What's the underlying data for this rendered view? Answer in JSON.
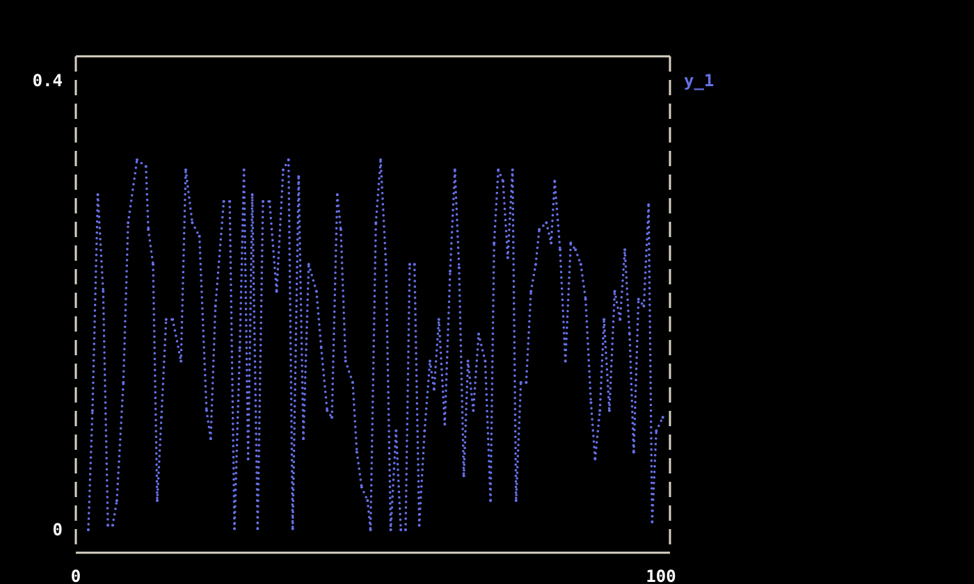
{
  "chart_data": {
    "type": "line",
    "title": "",
    "xlabel": "",
    "ylabel": "",
    "xlim": [
      0,
      100
    ],
    "ylim": [
      0,
      0.4
    ],
    "x_ticks": [
      "0",
      "100"
    ],
    "y_ticks": [
      "0",
      "0.4"
    ],
    "grid": false,
    "legend_placement": "top-right",
    "colors": {
      "series": "#6670e8",
      "frame": "#d9d2c3",
      "background": "#000000",
      "text": "#ffffff"
    },
    "series": [
      {
        "name": "y_1",
        "x": [
          2.1,
          2.8,
          3.7,
          4.6,
          5.4,
          6.2,
          6.9,
          8.0,
          8.8,
          10.3,
          11.8,
          12.2,
          13.0,
          13.7,
          14.4,
          15.2,
          16.3,
          17.7,
          18.5,
          19.6,
          20.8,
          22.0,
          22.7,
          23.5,
          24.9,
          25.9,
          26.7,
          27.6,
          28.3,
          29.0,
          29.7,
          30.6,
          31.5,
          32.6,
          33.8,
          34.9,
          35.8,
          36.5,
          37.5,
          38.3,
          39.2,
          40.5,
          41.3,
          42.3,
          43.1,
          44.0,
          44.6,
          45.4,
          46.6,
          47.3,
          48.1,
          49.1,
          49.6,
          50.5,
          51.3,
          52.2,
          53.0,
          53.9,
          54.7,
          55.5,
          56.2,
          57.0,
          57.8,
          58.7,
          59.6,
          60.3,
          61.1,
          62.1,
          63.0,
          63.8,
          64.5,
          65.3,
          66.0,
          66.9,
          67.8,
          68.9,
          69.8,
          70.4,
          71.1,
          71.9,
          72.7,
          73.5,
          74.1,
          74.9,
          75.8,
          76.6,
          77.4,
          78.0,
          79.2,
          80.0,
          80.6,
          81.5,
          82.4,
          83.3,
          84.1,
          85.0,
          85.8,
          86.7,
          87.4,
          88.2,
          88.9,
          89.8,
          90.7,
          91.6,
          92.4,
          93.2,
          93.9,
          94.7,
          95.6,
          96.4,
          97.0,
          97.7,
          98.8
        ],
        "y": [
          0.0,
          0.106,
          0.298,
          0.212,
          0.004,
          0.004,
          0.026,
          0.131,
          0.273,
          0.329,
          0.323,
          0.267,
          0.236,
          0.026,
          0.1,
          0.187,
          0.187,
          0.15,
          0.32,
          0.273,
          0.261,
          0.106,
          0.081,
          0.199,
          0.292,
          0.292,
          0.001,
          0.162,
          0.32,
          0.063,
          0.298,
          0.001,
          0.292,
          0.292,
          0.212,
          0.32,
          0.329,
          0.001,
          0.314,
          0.081,
          0.236,
          0.212,
          0.162,
          0.106,
          0.1,
          0.298,
          0.267,
          0.15,
          0.131,
          0.069,
          0.038,
          0.026,
          0.0,
          0.273,
          0.329,
          0.236,
          0.0,
          0.088,
          0.0,
          0.0,
          0.236,
          0.236,
          0.004,
          0.088,
          0.15,
          0.125,
          0.187,
          0.094,
          0.23,
          0.32,
          0.233,
          0.048,
          0.15,
          0.106,
          0.174,
          0.15,
          0.026,
          0.255,
          0.32,
          0.31,
          0.242,
          0.32,
          0.026,
          0.131,
          0.131,
          0.212,
          0.236,
          0.267,
          0.273,
          0.255,
          0.31,
          0.249,
          0.15,
          0.255,
          0.249,
          0.236,
          0.205,
          0.113,
          0.063,
          0.106,
          0.187,
          0.106,
          0.212,
          0.187,
          0.249,
          0.174,
          0.069,
          0.205,
          0.199,
          0.289,
          0.007,
          0.088,
          0.1
        ]
      }
    ]
  }
}
